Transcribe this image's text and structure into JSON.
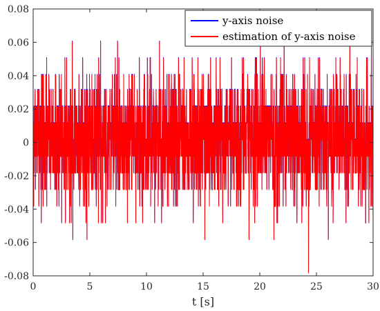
{
  "chart_data": {
    "type": "line",
    "title": "",
    "xlabel": "t [s]",
    "ylabel": "",
    "xlim": [
      0,
      30
    ],
    "ylim": [
      -0.08,
      0.08
    ],
    "x_ticks": [
      0,
      5,
      10,
      15,
      20,
      25,
      30
    ],
    "x_tick_labels": [
      "0",
      "5",
      "10",
      "15",
      "20",
      "25",
      "30"
    ],
    "y_ticks": [
      -0.08,
      -0.06,
      -0.04,
      -0.02,
      0,
      0.02,
      0.04,
      0.06,
      0.08
    ],
    "y_tick_labels": [
      "-0.08",
      "-0.06",
      "-0.04",
      "-0.02",
      "0",
      "0.02",
      "0.04",
      "0.06",
      "0.08"
    ],
    "grid": false,
    "legend_position": "top-right",
    "quantization_levels": [
      -0.078,
      -0.058,
      -0.048,
      -0.038,
      -0.028,
      -0.018,
      -0.008,
      0.002,
      0.012,
      0.022,
      0.032,
      0.041,
      0.051,
      0.061,
      0.071
    ],
    "sample_step": 0.01,
    "series": [
      {
        "name": "y-axis noise",
        "color": "#0000ff"
      },
      {
        "name": "estimation of y-axis noise",
        "color": "#ff0000"
      }
    ],
    "peaks": [
      {
        "t": 3.45,
        "y": 0.061
      },
      {
        "t": 5.95,
        "y": 0.061
      },
      {
        "t": 7.45,
        "y": 0.061
      },
      {
        "t": 11.15,
        "y": 0.061
      },
      {
        "t": 20.05,
        "y": 0.061
      },
      {
        "t": 22.15,
        "y": 0.061
      },
      {
        "t": 27.95,
        "y": 0.061
      },
      {
        "t": 29.85,
        "y": 0.071
      },
      {
        "t": 3.5,
        "y": -0.058
      },
      {
        "t": 4.75,
        "y": -0.058
      },
      {
        "t": 15.15,
        "y": -0.058
      },
      {
        "t": 19.05,
        "y": -0.058
      },
      {
        "t": 21.25,
        "y": -0.058
      },
      {
        "t": 24.3,
        "y": -0.078
      },
      {
        "t": 26.05,
        "y": -0.058
      }
    ]
  }
}
